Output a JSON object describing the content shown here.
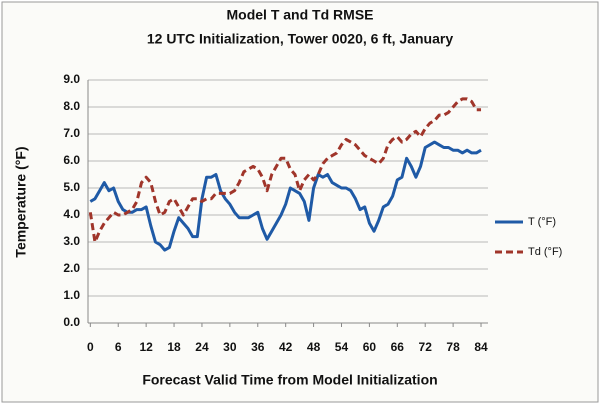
{
  "chart_data": {
    "type": "line",
    "title": "Model T and Td RMSE",
    "subtitle": "12 UTC Initialization, Tower 0020, 6 ft, January",
    "y_label": "Temperature (°F)",
    "x_label": "Forecast Valid Time from Model Initialization",
    "x": [
      0,
      1,
      2,
      3,
      4,
      5,
      6,
      7,
      8,
      9,
      10,
      11,
      12,
      13,
      14,
      15,
      16,
      17,
      18,
      19,
      20,
      21,
      22,
      23,
      24,
      25,
      26,
      27,
      28,
      29,
      30,
      31,
      32,
      33,
      34,
      35,
      36,
      37,
      38,
      39,
      40,
      41,
      42,
      43,
      44,
      45,
      46,
      47,
      48,
      49,
      50,
      51,
      52,
      53,
      54,
      55,
      56,
      57,
      58,
      59,
      60,
      61,
      62,
      63,
      64,
      65,
      66,
      67,
      68,
      69,
      70,
      71,
      72,
      73,
      74,
      75,
      76,
      77,
      78,
      79,
      80,
      81,
      82,
      83,
      84
    ],
    "series": [
      {
        "name": "T (°F)",
        "color": "#1f5aa6",
        "dash": false,
        "values": [
          4.5,
          4.6,
          4.9,
          5.2,
          4.9,
          5.0,
          4.5,
          4.2,
          4.1,
          4.1,
          4.2,
          4.2,
          4.3,
          3.6,
          3.0,
          2.9,
          2.7,
          2.8,
          3.4,
          3.9,
          3.7,
          3.5,
          3.2,
          3.2,
          4.6,
          5.4,
          5.4,
          5.5,
          4.9,
          4.6,
          4.4,
          4.1,
          3.9,
          3.9,
          3.9,
          4.0,
          4.1,
          3.5,
          3.1,
          3.4,
          3.7,
          4.0,
          4.4,
          5.0,
          4.9,
          4.8,
          4.5,
          3.8,
          5.0,
          5.5,
          5.4,
          5.5,
          5.2,
          5.1,
          5.0,
          5.0,
          4.9,
          4.6,
          4.2,
          4.3,
          3.7,
          3.4,
          3.8,
          4.3,
          4.4,
          4.7,
          5.3,
          5.4,
          6.1,
          5.8,
          5.4,
          5.8,
          6.5,
          6.6,
          6.7,
          6.6,
          6.5,
          6.5,
          6.4,
          6.4,
          6.3,
          6.4,
          6.3,
          6.3,
          6.4
        ]
      },
      {
        "name": "Td (°F)",
        "color": "#a0352a",
        "dash": true,
        "values": [
          4.1,
          3.0,
          3.4,
          3.7,
          3.9,
          4.1,
          4.0,
          4.0,
          4.1,
          4.2,
          4.5,
          5.2,
          5.4,
          5.2,
          4.5,
          4.0,
          4.1,
          4.5,
          4.6,
          4.3,
          4.0,
          4.3,
          4.6,
          4.6,
          4.5,
          4.6,
          4.6,
          4.8,
          4.8,
          4.8,
          4.8,
          4.9,
          5.2,
          5.6,
          5.7,
          5.8,
          5.7,
          5.4,
          4.9,
          5.5,
          5.8,
          6.1,
          6.1,
          5.7,
          5.5,
          4.9,
          5.3,
          5.5,
          5.3,
          5.5,
          5.9,
          6.1,
          6.2,
          6.3,
          6.6,
          6.8,
          6.7,
          6.6,
          6.4,
          6.2,
          6.1,
          6.0,
          5.9,
          6.1,
          6.6,
          6.8,
          6.9,
          6.7,
          6.8,
          7.0,
          7.1,
          6.9,
          7.2,
          7.4,
          7.5,
          7.7,
          7.7,
          7.8,
          8.0,
          8.2,
          8.3,
          8.3,
          8.2,
          7.9,
          7.9
        ]
      }
    ],
    "xlim": [
      -0.5,
      85.5
    ],
    "xticks": [
      0,
      6,
      12,
      18,
      24,
      30,
      36,
      42,
      48,
      54,
      60,
      66,
      72,
      78,
      84
    ],
    "ylim": [
      0,
      9
    ],
    "yticks": [
      {
        "value": 0,
        "label": "0.0"
      },
      {
        "value": 1,
        "label": "1.0"
      },
      {
        "value": 2,
        "label": "2.0"
      },
      {
        "value": 3,
        "label": "3.0"
      },
      {
        "value": 4,
        "label": "4.0"
      },
      {
        "value": 5,
        "label": "5.0"
      },
      {
        "value": 6,
        "label": "6.0"
      },
      {
        "value": 7,
        "label": "7.0"
      },
      {
        "value": 8,
        "label": "8.0"
      },
      {
        "value": 9,
        "label": "9.0"
      }
    ],
    "grid": true,
    "legend": "right"
  }
}
